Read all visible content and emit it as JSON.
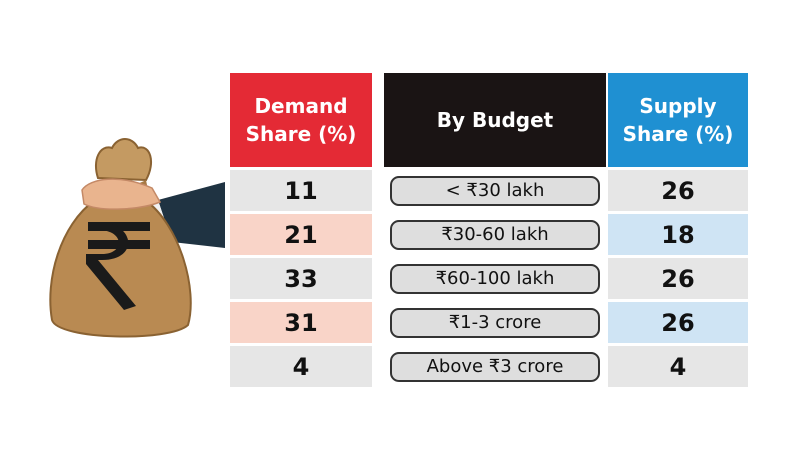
{
  "colors": {
    "demand_header": "#e42a35",
    "budget_header": "#1a1414",
    "supply_header": "#1f90d2",
    "row_grey": "#e6e6e6",
    "demand_highlight": "#f9d4c8",
    "supply_highlight": "#cfe4f4",
    "pill_fill": "#dedede"
  },
  "icons": {
    "illustration": "money-bag-rupee-icon"
  },
  "chart_data": {
    "type": "table",
    "columns": [
      "Demand\nShare (%)",
      "By Budget",
      "Supply\nShare (%)"
    ],
    "rows": [
      {
        "demand": "11",
        "budget": "< ₹30 lakh",
        "supply": "26"
      },
      {
        "demand": "21",
        "budget": "₹30-60 lakh",
        "supply": "18"
      },
      {
        "demand": "33",
        "budget": "₹60-100 lakh",
        "supply": "26"
      },
      {
        "demand": "31",
        "budget": "₹1-3 crore",
        "supply": "26"
      },
      {
        "demand": "4",
        "budget": "Above ₹3 crore",
        "supply": "4"
      }
    ],
    "highlighted_rows": [
      1,
      3
    ]
  }
}
